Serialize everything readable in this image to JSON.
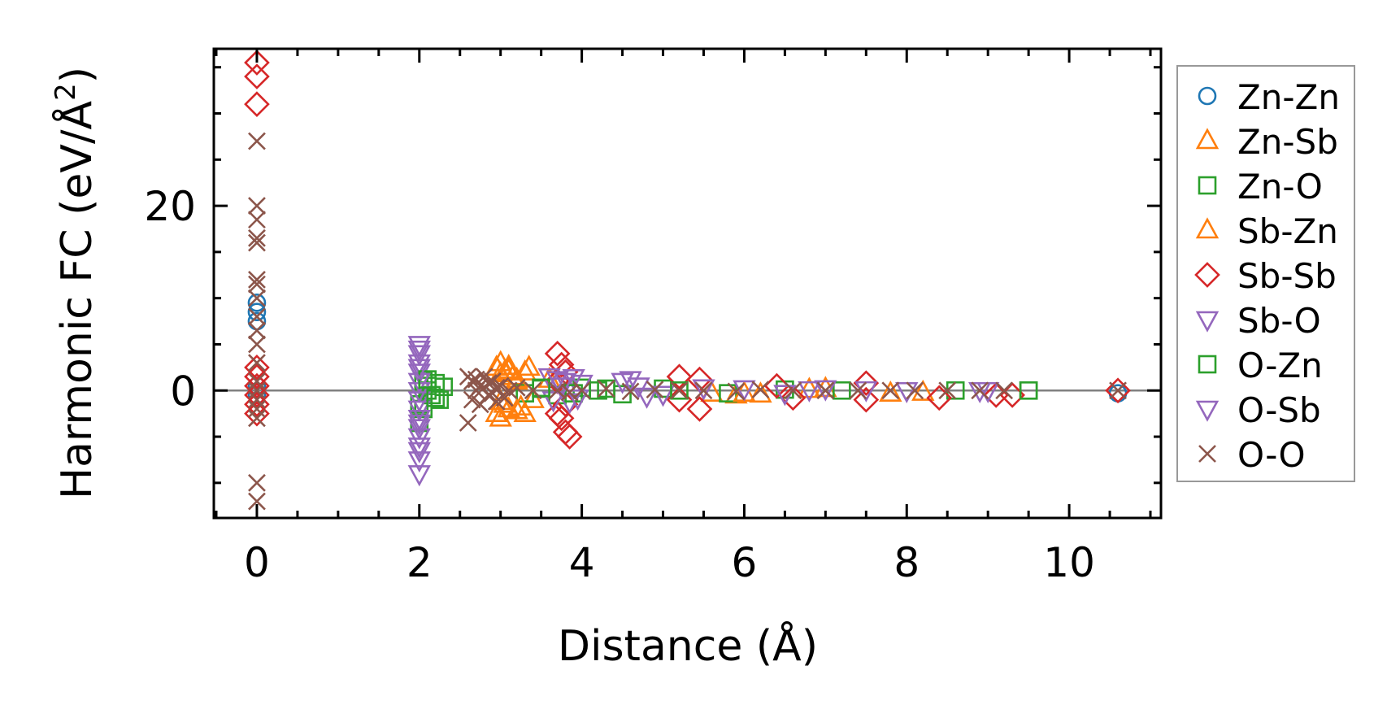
{
  "chart_data": {
    "type": "scatter",
    "title": "",
    "xlabel": "Distance (Å)",
    "ylabel_main": "Harmonic FC (eV/Å",
    "ylabel_sup": "2",
    "ylabel_close": ")",
    "xlim": [
      -0.53,
      11.13
    ],
    "ylim": [
      -13.8,
      37.0
    ],
    "xticks": [
      0,
      2,
      4,
      6,
      8,
      10
    ],
    "xtick_labels": [
      "0",
      "2",
      "4",
      "6",
      "8",
      "10"
    ],
    "xminor_step": 0.5,
    "yticks": [
      0,
      20
    ],
    "ytick_labels": [
      "0",
      "20"
    ],
    "yminor_step": 5,
    "zero_line": true,
    "grid": false,
    "legend_position": "outside-right",
    "series": [
      {
        "name": "Zn-Zn",
        "marker": "circle",
        "color": "#1f77b4",
        "x": [
          0,
          0,
          0,
          0,
          0,
          10.6
        ],
        "y": [
          9.5,
          8.5,
          7.5,
          0.5,
          -0.5,
          -0.3
        ]
      },
      {
        "name": "Zn-Sb",
        "marker": "triangle-up",
        "color": "#ff7f0e",
        "x": [
          2.95,
          3.0,
          3.05,
          3.1,
          3.15,
          3.3,
          2.95,
          3.0,
          3.1,
          3.3,
          3.05,
          3.2,
          3.4,
          3.6,
          5.6,
          5.9,
          6.2,
          7.0,
          7.8,
          8.2
        ],
        "y": [
          2.5,
          3.0,
          2.0,
          2.6,
          1.5,
          2.0,
          -2.5,
          -3.0,
          -2.0,
          -2.5,
          -1.5,
          1.0,
          -1.0,
          1.2,
          -0.3,
          -0.5,
          -0.4,
          0.2,
          -0.3,
          -0.2
        ]
      },
      {
        "name": "Zn-O",
        "marker": "square",
        "color": "#2ca02c",
        "x": [
          2.0,
          2.05,
          2.1,
          2.15,
          2.2,
          2.25,
          2.05,
          2.1,
          2.0,
          3.3,
          3.5,
          3.7,
          4.0,
          4.2,
          4.5,
          5.0,
          5.8,
          6.5,
          7.2,
          8.6,
          9.5
        ],
        "y": [
          -3.5,
          1.0,
          0.5,
          -0.5,
          0.8,
          -1.0,
          -2.0,
          0.0,
          -1.5,
          -0.3,
          0.2,
          -0.5,
          0.3,
          0.0,
          -0.4,
          0.2,
          -0.3,
          0.1,
          0.0,
          0.0,
          0.0
        ]
      },
      {
        "name": "Sb-Zn",
        "marker": "triangle-up",
        "color": "#ff7f0e",
        "x": [
          3.0,
          3.1,
          3.2,
          3.25,
          3.35,
          3.0,
          3.2,
          6.0,
          6.8
        ],
        "y": [
          1.8,
          2.2,
          1.2,
          -1.8,
          2.5,
          -1.2,
          -2.2,
          -0.3,
          0.1
        ]
      },
      {
        "name": "Sb-Sb",
        "marker": "diamond",
        "color": "#d62728",
        "x": [
          0,
          0,
          0,
          0,
          0,
          0,
          0,
          0,
          0,
          3.7,
          3.75,
          3.8,
          3.7,
          3.75,
          3.8,
          3.85,
          3.7,
          3.8,
          5.2,
          5.2,
          5.45,
          5.45,
          6.4,
          6.6,
          7.5,
          7.5,
          8.4,
          9.1,
          9.3,
          10.6
        ],
        "y": [
          35.5,
          34.0,
          31.0,
          2.5,
          1.5,
          0.5,
          -0.5,
          -1.5,
          -2.5,
          4.0,
          2.8,
          2.0,
          -2.5,
          -3.0,
          -4.5,
          -5.0,
          1.0,
          -1.5,
          1.5,
          -1.0,
          1.2,
          -2.0,
          0.5,
          -0.8,
          0.8,
          -1.0,
          -0.8,
          -0.5,
          -0.5,
          0.0
        ]
      },
      {
        "name": "Sb-O",
        "marker": "triangle-down",
        "color": "#9467bd",
        "x": [
          2.0,
          2.0,
          2.0,
          2.0,
          2.0,
          2.0,
          2.0,
          2.0,
          2.0,
          2.0,
          2.0,
          2.0,
          2.0,
          2.0,
          3.6,
          3.7,
          3.8,
          3.9,
          4.0,
          3.65,
          3.85,
          4.5,
          4.7,
          5.0,
          5.5,
          6.0,
          6.5,
          7.0,
          7.5,
          8.0,
          9.0
        ],
        "y": [
          5.0,
          4.0,
          3.0,
          2.0,
          1.0,
          0.0,
          -1.0,
          -2.0,
          -3.0,
          -4.0,
          -5.0,
          -6.5,
          -7.5,
          -9.0,
          1.5,
          1.2,
          1.0,
          1.4,
          0.8,
          -1.0,
          -1.2,
          1.0,
          0.5,
          -0.4,
          0.3,
          0.2,
          -0.3,
          0.2,
          0.1,
          0.0,
          0.0
        ]
      },
      {
        "name": "O-Zn",
        "marker": "square",
        "color": "#2ca02c",
        "x": [
          2.1,
          2.2,
          2.3,
          3.5,
          3.9,
          4.3,
          5.2,
          9.5
        ],
        "y": [
          1.2,
          -0.8,
          0.4,
          0.3,
          -0.3,
          0.2,
          0.0,
          0.0
        ]
      },
      {
        "name": "O-Sb",
        "marker": "triangle-down",
        "color": "#9467bd",
        "x": [
          2.0,
          2.0,
          2.0,
          2.0,
          3.75,
          3.95,
          4.6,
          4.8,
          6.8,
          8.9
        ],
        "y": [
          4.5,
          2.5,
          -3.5,
          -6.0,
          0.5,
          -0.8,
          1.2,
          -0.6,
          0.1,
          0.0
        ]
      },
      {
        "name": "O-O",
        "marker": "x",
        "color": "#8c564b",
        "x": [
          0,
          0,
          0,
          0,
          0,
          0,
          0,
          0,
          0,
          0,
          0,
          0,
          0,
          0,
          0,
          0,
          0,
          0,
          0,
          2.6,
          2.65,
          2.7,
          2.75,
          2.8,
          2.85,
          2.9,
          2.95,
          3.0,
          3.1,
          3.2,
          2.65,
          2.75,
          2.85,
          2.95,
          3.05,
          2.7,
          2.9,
          2.6,
          3.4,
          3.7,
          3.85,
          4.0,
          4.3,
          4.6,
          4.9,
          5.2,
          5.5,
          5.9,
          6.2,
          6.6,
          7.0,
          7.4,
          7.8,
          8.1,
          8.5,
          8.9,
          9.2,
          10.6
        ],
        "y": [
          27.0,
          20.0,
          18.5,
          16.5,
          16.0,
          12.0,
          11.5,
          10.0,
          8.0,
          6.5,
          5.0,
          3.0,
          1.0,
          0.0,
          -1.0,
          -2.0,
          -3.0,
          -10.0,
          -12.0,
          1.5,
          1.0,
          1.2,
          0.5,
          1.5,
          0.8,
          1.0,
          0.3,
          0.5,
          0.0,
          0.3,
          -1.0,
          -1.5,
          -0.5,
          -1.2,
          -0.8,
          0.0,
          -0.3,
          -3.5,
          0.0,
          0.0,
          -0.2,
          0.0,
          0.2,
          -0.1,
          0.1,
          0.0,
          0.0,
          -0.1,
          0.1,
          0.0,
          0.0,
          0.0,
          0.0,
          0.0,
          0.0,
          0.0,
          0.0,
          0.0
        ]
      }
    ]
  }
}
